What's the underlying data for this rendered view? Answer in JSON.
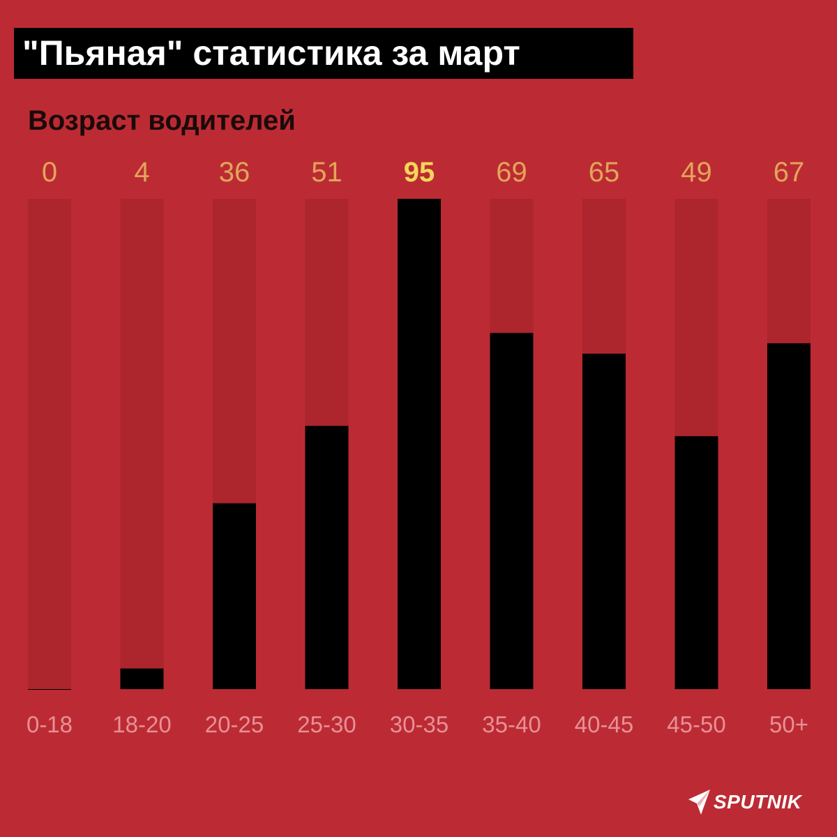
{
  "title": "\"Пьяная\" статистика за март",
  "subtitle": "Возраст водителей",
  "brand": {
    "name": "SPUTNIK",
    "icon": "sputnik-logo-icon"
  },
  "colors": {
    "background": "#bc2b33",
    "track": "#ad252d",
    "bar": "#000000",
    "value_label": "#e2a55a",
    "value_label_highlight": "#f2d75a",
    "category_label": "#e89098"
  },
  "chart_data": {
    "type": "bar",
    "title": "\"Пьяная\" статистика за март",
    "subtitle": "Возраст водителей",
    "categories": [
      "0-18",
      "18-20",
      "20-25",
      "25-30",
      "30-35",
      "35-40",
      "40-45",
      "45-50",
      "50+"
    ],
    "values": [
      0,
      4,
      36,
      51,
      95,
      69,
      65,
      49,
      67
    ],
    "highlight_index": 4,
    "ylim": [
      0,
      95
    ],
    "grid": false,
    "xlabel": "",
    "ylabel": ""
  }
}
